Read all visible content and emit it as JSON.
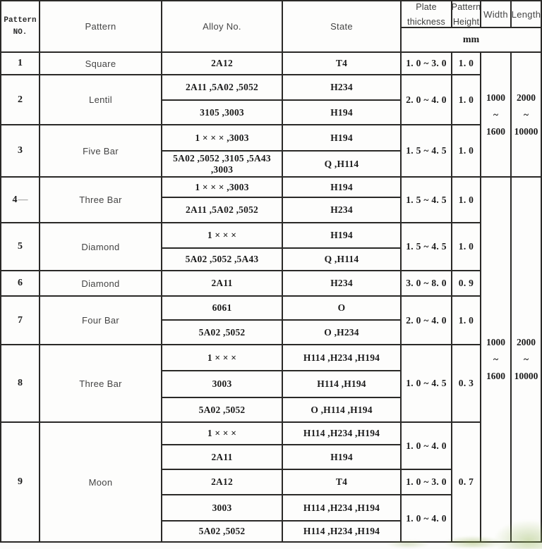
{
  "header": {
    "pattern_no": [
      "Pattern",
      "NO."
    ],
    "pattern": "Pattern",
    "alloy_no": "Alloy No.",
    "state": "State",
    "plate_thickness": [
      "Plate",
      "thickness"
    ],
    "pattern_height": [
      "Pattern",
      "Height"
    ],
    "width": "Width",
    "length": "Length",
    "unit": "mm"
  },
  "size_groups": [
    {
      "width": [
        "1000",
        "~",
        "1600"
      ],
      "length": [
        "2000",
        "~",
        "10000"
      ]
    },
    {
      "width": [
        "1000",
        "~",
        "1600"
      ],
      "length": [
        "2000",
        "~",
        "10000"
      ]
    }
  ],
  "rows": [
    {
      "no": "1",
      "pattern": "Square",
      "subs": [
        {
          "alloy": "2A12",
          "state": "T4"
        }
      ],
      "thickness": [
        "1. 0 ~ 3. 0"
      ],
      "height": "1. 0"
    },
    {
      "no": "2",
      "pattern": "Lentil",
      "subs": [
        {
          "alloy": "2A11 ,5A02 ,5052",
          "state": "H234"
        },
        {
          "alloy": "3105 ,3003",
          "state": "H194"
        }
      ],
      "thickness": [
        "2. 0 ~ 4. 0"
      ],
      "height": "1. 0"
    },
    {
      "no": "3",
      "pattern": "Five Bar",
      "subs": [
        {
          "alloy": "1 × × × ,3003",
          "state": "H194"
        },
        {
          "alloy": "5A02 ,5052 ,3105 ,5A43 ,3003",
          "state": "Q ,H114"
        }
      ],
      "thickness": [
        "1. 5 ~ 4. 5"
      ],
      "height": "1. 0"
    },
    {
      "no": "4",
      "dash": "—",
      "pattern": "Three Bar",
      "subs": [
        {
          "alloy": "1 × × × ,3003",
          "state": "H194"
        },
        {
          "alloy": "2A11 ,5A02 ,5052",
          "state": "H234"
        }
      ],
      "thickness": [
        "1. 5 ~ 4. 5"
      ],
      "height": "1. 0"
    },
    {
      "no": "5",
      "pattern": "Diamond",
      "subs": [
        {
          "alloy": "1 × × ×",
          "state": "H194"
        },
        {
          "alloy": "5A02 ,5052 ,5A43",
          "state": "Q ,H114"
        }
      ],
      "thickness": [
        "1. 5 ~ 4. 5"
      ],
      "height": "1. 0"
    },
    {
      "no": "6",
      "pattern": "Diamond",
      "subs": [
        {
          "alloy": "2A11",
          "state": "H234"
        }
      ],
      "thickness": [
        "3. 0 ~ 8. 0"
      ],
      "height": "0. 9"
    },
    {
      "no": "7",
      "pattern": "Four Bar",
      "subs": [
        {
          "alloy": "6061",
          "state": "O"
        },
        {
          "alloy": "5A02 ,5052",
          "state": "O ,H234"
        }
      ],
      "thickness": [
        "2. 0 ~ 4. 0"
      ],
      "height": "1. 0"
    },
    {
      "no": "8",
      "pattern": "Three Bar",
      "subs": [
        {
          "alloy": "1 × × ×",
          "state": "H114 ,H234 ,H194"
        },
        {
          "alloy": "3003",
          "state": "H114 ,H194"
        },
        {
          "alloy": "5A02 ,5052",
          "state": "O ,H114 ,H194"
        }
      ],
      "thickness": [
        "1. 0 ~ 4. 5"
      ],
      "height": "0. 3"
    },
    {
      "no": "9",
      "pattern": "Moon",
      "subs": [
        {
          "alloy": "1 × × ×",
          "state": "H114 ,H234 ,H194"
        },
        {
          "alloy": "2A11",
          "state": "H194"
        },
        {
          "alloy": "2A12",
          "state": "T4"
        },
        {
          "alloy": "3003",
          "state": "H114 ,H234 ,H194"
        },
        {
          "alloy": "5A02 ,5052",
          "state": "H114 ,H234 ,H194"
        }
      ],
      "thickness": [
        "1. 0 ~ 4. 0",
        "1. 0 ~ 3. 0",
        "1. 0 ~ 4. 0"
      ],
      "height": "0. 7"
    }
  ],
  "colors": {
    "border": "#2a2927",
    "text": "#1b1b1b",
    "smudge_green": "#8fae4c"
  }
}
